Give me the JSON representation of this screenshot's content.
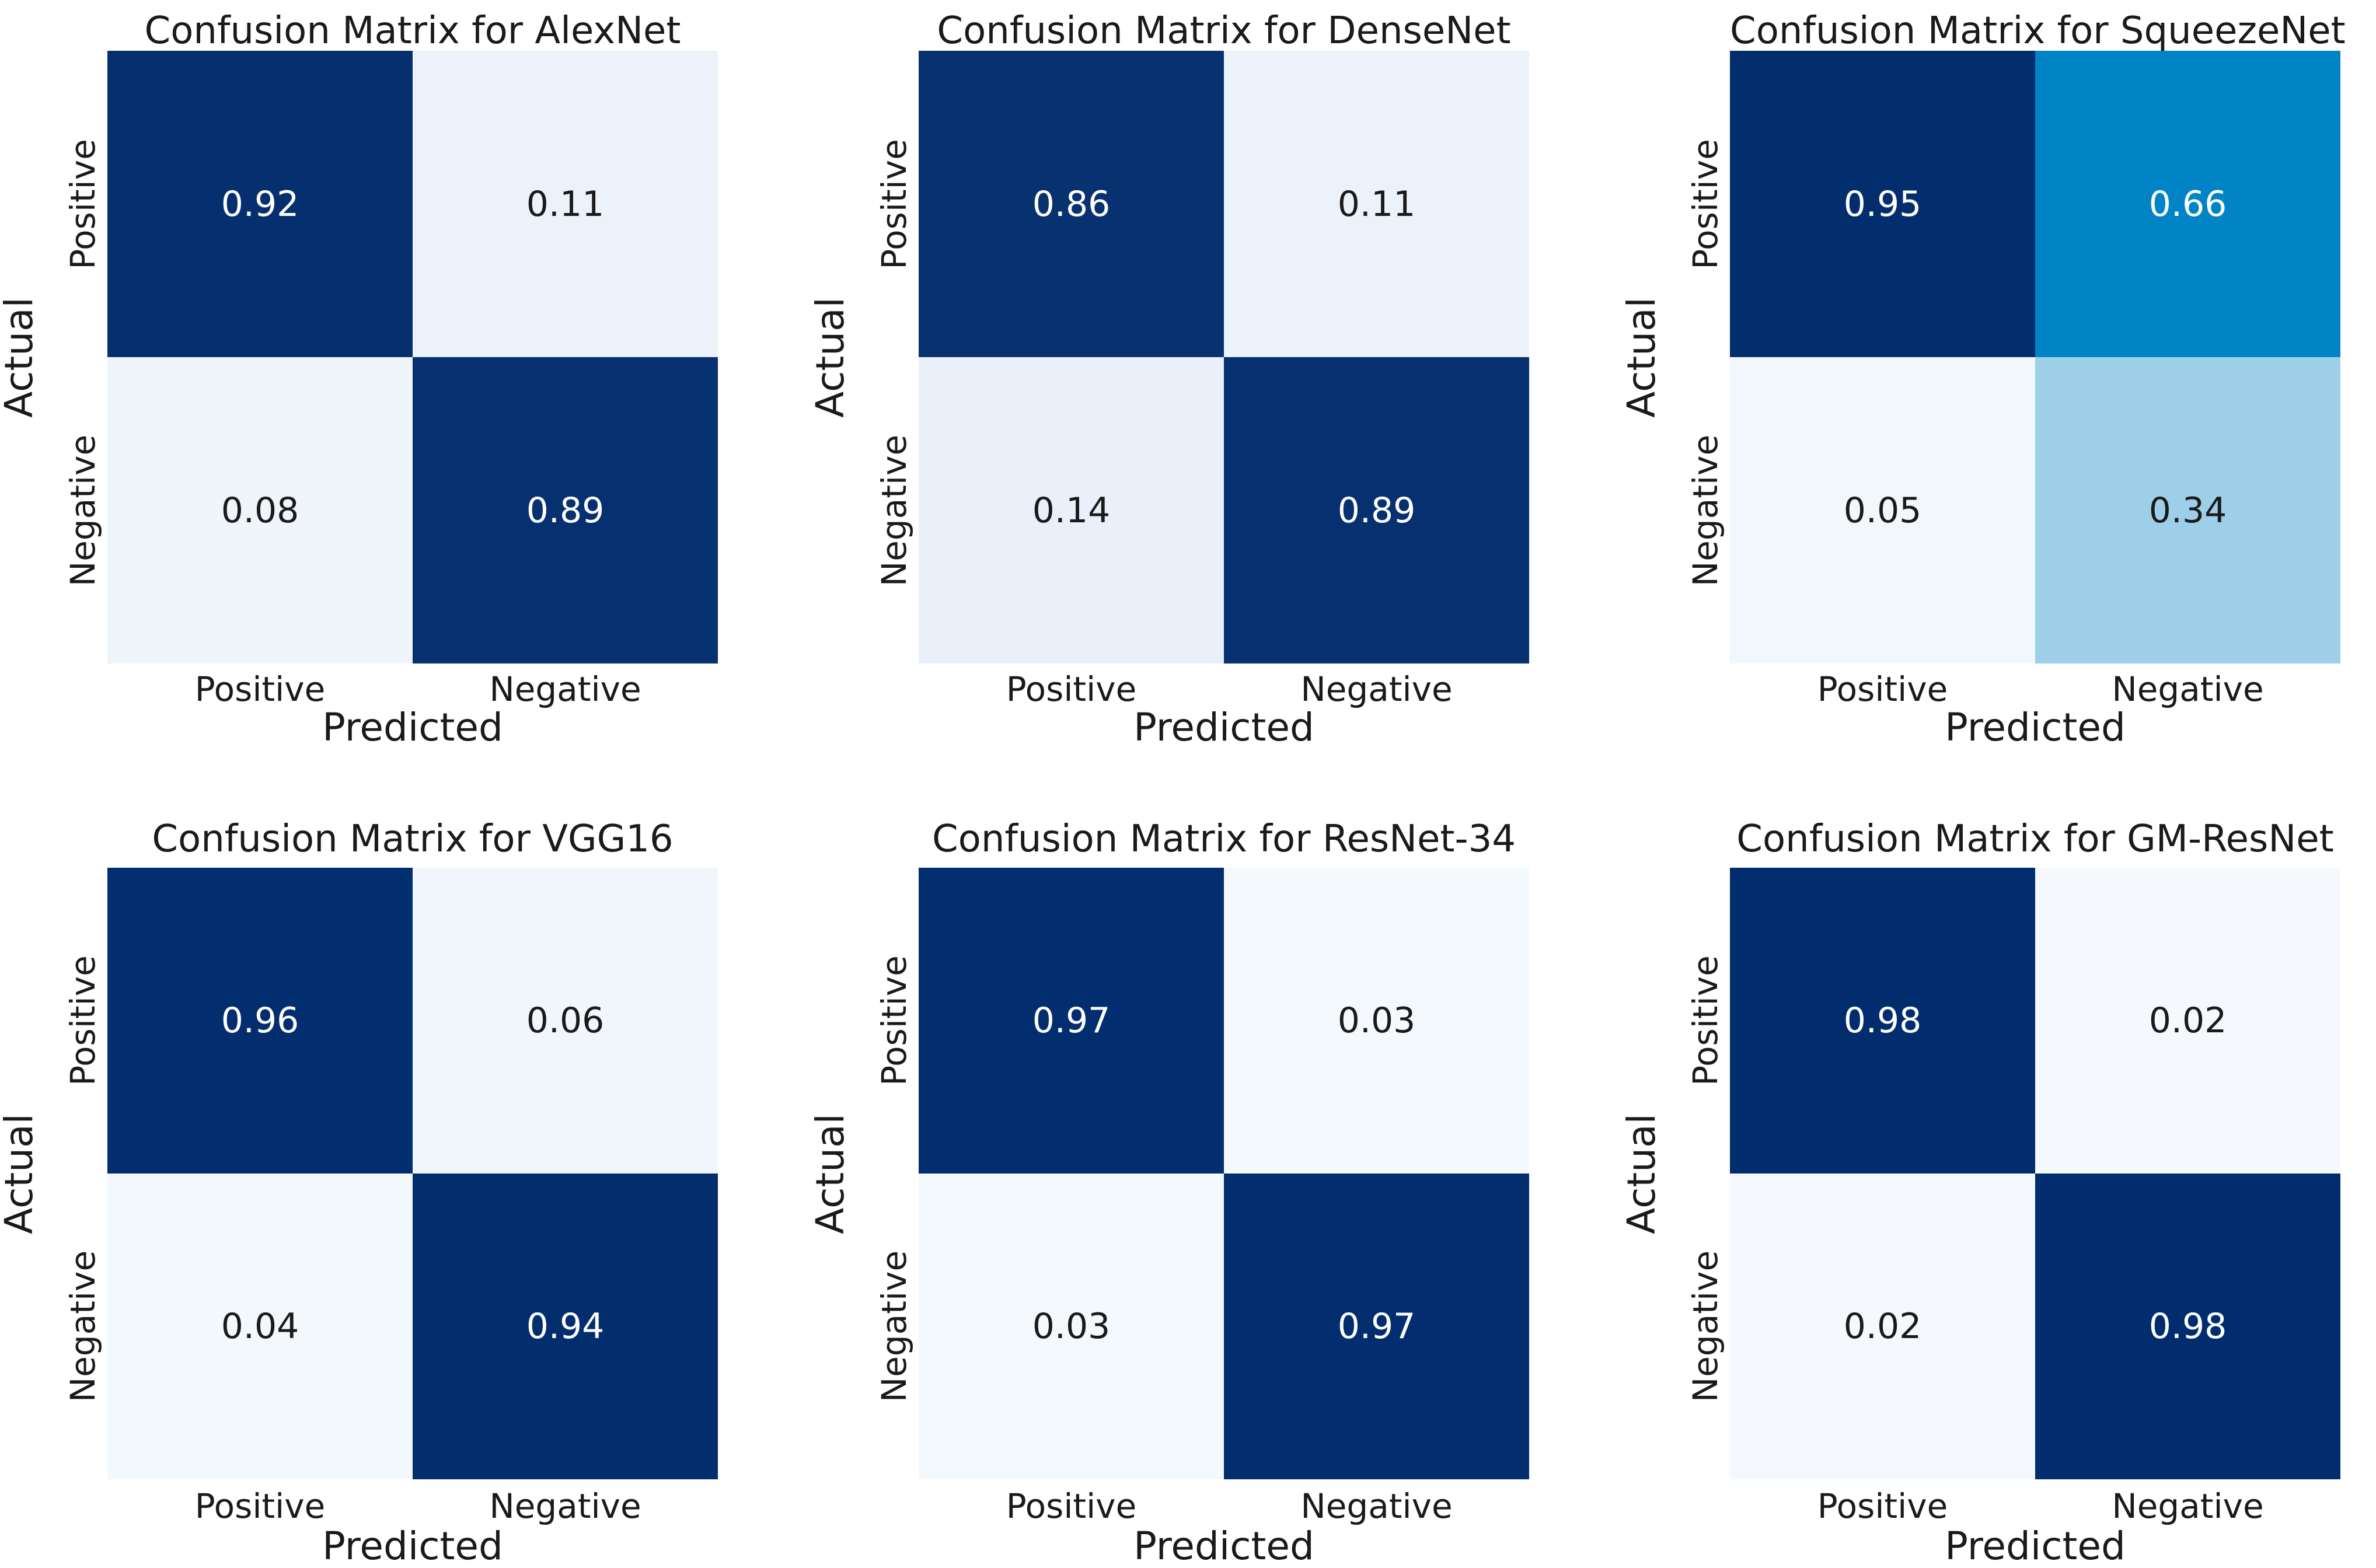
{
  "figure": {
    "background": "#ffffff",
    "text_color": "#1a1a1a"
  },
  "colormap": {
    "name": "Blues",
    "stops": [
      [
        0.0,
        "#f7fbff"
      ],
      [
        0.05,
        "#f2f7fc"
      ],
      [
        0.14,
        "#e9f0f9"
      ],
      [
        0.34,
        "#9dd0e8"
      ],
      [
        0.66,
        "#0084c6"
      ],
      [
        0.86,
        "#08316f"
      ],
      [
        1.0,
        "#002c6e"
      ]
    ],
    "text_light": "#ffffff",
    "text_dark": "#1a1a1a",
    "light_text_threshold": 0.5
  },
  "chart_data": [
    {
      "type": "heatmap",
      "title": "Confusion Matrix for AlexNet",
      "xlabel": "Predicted",
      "ylabel": "Actual",
      "x_ticks": [
        "Positive",
        "Negative"
      ],
      "y_ticks": [
        "Positive",
        "Negative"
      ],
      "matrix": [
        [
          0.92,
          0.11
        ],
        [
          0.08,
          0.89
        ]
      ],
      "value_range": [
        0,
        1
      ],
      "colormap": "Blues"
    },
    {
      "type": "heatmap",
      "title": "Confusion Matrix for DenseNet",
      "xlabel": "Predicted",
      "ylabel": "Actual",
      "x_ticks": [
        "Positive",
        "Negative"
      ],
      "y_ticks": [
        "Positive",
        "Negative"
      ],
      "matrix": [
        [
          0.86,
          0.11
        ],
        [
          0.14,
          0.89
        ]
      ],
      "value_range": [
        0,
        1
      ],
      "colormap": "Blues"
    },
    {
      "type": "heatmap",
      "title": "Confusion Matrix for SqueezeNet",
      "xlabel": "Predicted",
      "ylabel": "Actual",
      "x_ticks": [
        "Positive",
        "Negative"
      ],
      "y_ticks": [
        "Positive",
        "Negative"
      ],
      "matrix": [
        [
          0.95,
          0.66
        ],
        [
          0.05,
          0.34
        ]
      ],
      "value_range": [
        0,
        1
      ],
      "colormap": "Blues"
    },
    {
      "type": "heatmap",
      "title": "Confusion Matrix for VGG16",
      "xlabel": "Predicted",
      "ylabel": "Actual",
      "x_ticks": [
        "Positive",
        "Negative"
      ],
      "y_ticks": [
        "Positive",
        "Negative"
      ],
      "matrix": [
        [
          0.96,
          0.06
        ],
        [
          0.04,
          0.94
        ]
      ],
      "value_range": [
        0,
        1
      ],
      "colormap": "Blues"
    },
    {
      "type": "heatmap",
      "title": "Confusion Matrix for ResNet-34",
      "xlabel": "Predicted",
      "ylabel": "Actual",
      "x_ticks": [
        "Positive",
        "Negative"
      ],
      "y_ticks": [
        "Positive",
        "Negative"
      ],
      "matrix": [
        [
          0.97,
          0.03
        ],
        [
          0.03,
          0.97
        ]
      ],
      "value_range": [
        0,
        1
      ],
      "colormap": "Blues"
    },
    {
      "type": "heatmap",
      "title": "Confusion Matrix for GM-ResNet",
      "xlabel": "Predicted",
      "ylabel": "Actual",
      "x_ticks": [
        "Positive",
        "Negative"
      ],
      "y_ticks": [
        "Positive",
        "Negative"
      ],
      "matrix": [
        [
          0.98,
          0.02
        ],
        [
          0.02,
          0.98
        ]
      ],
      "value_range": [
        0,
        1
      ],
      "colormap": "Blues"
    }
  ]
}
